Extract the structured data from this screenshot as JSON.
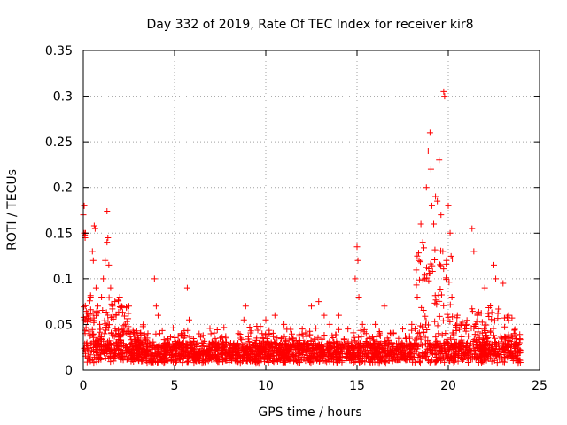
{
  "chart_data": {
    "type": "scatter",
    "title": "Day 332 of 2019, Rate Of TEC Index for receiver kir8",
    "xlabel": "GPS time / hours",
    "ylabel": "ROTI / TECUs",
    "xlim": [
      0,
      25
    ],
    "ylim": [
      0,
      0.35
    ],
    "xticks": [
      0,
      5,
      10,
      15,
      20,
      25
    ],
    "xtick_labels": [
      "0",
      "5",
      "10",
      "15",
      "20",
      "25"
    ],
    "yticks": [
      0,
      0.05,
      0.1,
      0.15,
      0.2,
      0.25,
      0.3,
      0.35
    ],
    "ytick_labels": [
      "0",
      "0.05",
      "0.1",
      "0.15",
      "0.2",
      "0.25",
      "0.3",
      "0.35"
    ],
    "grid": true,
    "marker": "plus",
    "color": "#ff0000",
    "series": [
      {
        "name": "ROTI",
        "points": [
          [
            0.0,
            0.17
          ],
          [
            0.05,
            0.18
          ],
          [
            0.05,
            0.15
          ],
          [
            0.08,
            0.148
          ],
          [
            0.1,
            0.145
          ],
          [
            0.12,
            0.15
          ],
          [
            0.1,
            0.04
          ],
          [
            0.2,
            0.03
          ],
          [
            0.3,
            0.06
          ],
          [
            0.4,
            0.08
          ],
          [
            0.5,
            0.13
          ],
          [
            0.55,
            0.12
          ],
          [
            0.6,
            0.158
          ],
          [
            0.65,
            0.155
          ],
          [
            0.7,
            0.09
          ],
          [
            0.8,
            0.07
          ],
          [
            0.9,
            0.05
          ],
          [
            1.0,
            0.08
          ],
          [
            1.1,
            0.1
          ],
          [
            1.2,
            0.12
          ],
          [
            1.3,
            0.14
          ],
          [
            1.3,
            0.174
          ],
          [
            1.35,
            0.145
          ],
          [
            1.4,
            0.115
          ],
          [
            1.5,
            0.09
          ],
          [
            1.6,
            0.07
          ],
          [
            1.8,
            0.06
          ],
          [
            2.0,
            0.08
          ],
          [
            2.1,
            0.07
          ],
          [
            2.3,
            0.05
          ],
          [
            2.5,
            0.07
          ],
          [
            2.8,
            0.04
          ],
          [
            3.0,
            0.03
          ],
          [
            3.5,
            0.035
          ],
          [
            3.9,
            0.1
          ],
          [
            4.0,
            0.07
          ],
          [
            4.1,
            0.06
          ],
          [
            4.2,
            0.04
          ],
          [
            4.5,
            0.03
          ],
          [
            5.0,
            0.025
          ],
          [
            5.5,
            0.035
          ],
          [
            5.7,
            0.09
          ],
          [
            5.8,
            0.055
          ],
          [
            6.5,
            0.03
          ],
          [
            7.5,
            0.035
          ],
          [
            8.5,
            0.04
          ],
          [
            8.8,
            0.055
          ],
          [
            8.9,
            0.07
          ],
          [
            9.5,
            0.035
          ],
          [
            10.0,
            0.055
          ],
          [
            10.5,
            0.06
          ],
          [
            11.0,
            0.05
          ],
          [
            11.5,
            0.035
          ],
          [
            12.0,
            0.045
          ],
          [
            12.5,
            0.07
          ],
          [
            12.9,
            0.075
          ],
          [
            13.2,
            0.06
          ],
          [
            13.5,
            0.05
          ],
          [
            14.0,
            0.06
          ],
          [
            14.5,
            0.045
          ],
          [
            14.9,
            0.1
          ],
          [
            15.0,
            0.135
          ],
          [
            15.05,
            0.12
          ],
          [
            15.1,
            0.08
          ],
          [
            15.3,
            0.05
          ],
          [
            15.5,
            0.04
          ],
          [
            16.0,
            0.05
          ],
          [
            16.5,
            0.07
          ],
          [
            17.0,
            0.04
          ],
          [
            17.5,
            0.045
          ],
          [
            18.0,
            0.05
          ],
          [
            18.3,
            0.08
          ],
          [
            18.4,
            0.12
          ],
          [
            18.5,
            0.16
          ],
          [
            18.6,
            0.14
          ],
          [
            18.7,
            0.1
          ],
          [
            18.8,
            0.2
          ],
          [
            18.9,
            0.24
          ],
          [
            19.0,
            0.26
          ],
          [
            19.05,
            0.22
          ],
          [
            19.1,
            0.18
          ],
          [
            19.2,
            0.16
          ],
          [
            19.3,
            0.19
          ],
          [
            19.4,
            0.185
          ],
          [
            19.5,
            0.23
          ],
          [
            19.6,
            0.17
          ],
          [
            19.7,
            0.13
          ],
          [
            19.75,
            0.305
          ],
          [
            19.8,
            0.3
          ],
          [
            19.9,
            0.12
          ],
          [
            20.0,
            0.18
          ],
          [
            20.1,
            0.15
          ],
          [
            20.2,
            0.08
          ],
          [
            20.5,
            0.06
          ],
          [
            21.0,
            0.05
          ],
          [
            21.3,
            0.155
          ],
          [
            21.4,
            0.13
          ],
          [
            21.6,
            0.06
          ],
          [
            22.0,
            0.09
          ],
          [
            22.5,
            0.115
          ],
          [
            22.6,
            0.1
          ],
          [
            23.0,
            0.095
          ],
          [
            23.3,
            0.06
          ],
          [
            23.6,
            0.04
          ],
          [
            23.9,
            0.03
          ]
        ]
      }
    ]
  }
}
